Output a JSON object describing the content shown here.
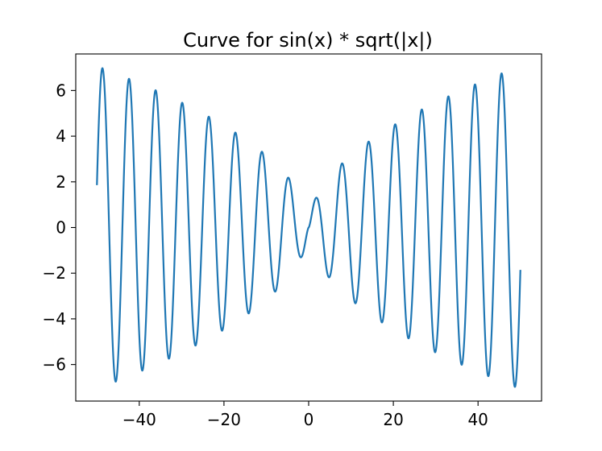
{
  "chart_data": {
    "type": "line",
    "title": "Curve for sin(x) * sqrt(|x|)",
    "xlabel": "",
    "ylabel": "",
    "function": "sin(x) * sqrt(|x|)",
    "x_range": [
      -50,
      50
    ],
    "xlim": [
      -55,
      55
    ],
    "ylim": [
      -7.6,
      7.6
    ],
    "x_ticks": [
      -40,
      -20,
      0,
      20,
      40
    ],
    "x_tick_labels": [
      "−40",
      "−20",
      "0",
      "20",
      "40"
    ],
    "y_ticks": [
      -6,
      -4,
      -2,
      0,
      2,
      4,
      6
    ],
    "y_tick_labels": [
      "−6",
      "−4",
      "−2",
      "0",
      "2",
      "4",
      "6"
    ],
    "grid": false,
    "legend": "none",
    "series": [
      {
        "color": "#1f77b4"
      }
    ]
  }
}
